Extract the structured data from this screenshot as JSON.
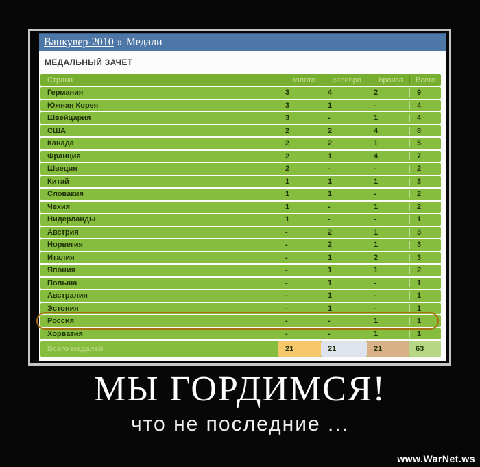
{
  "breadcrumb": {
    "link": "Ванкувер-2010",
    "separator": "»",
    "current": "Медали"
  },
  "page_title": "МЕДАЛЬНЫЙ ЗАЧЕТ",
  "table": {
    "columns": [
      "Страна",
      "золото",
      "серебро",
      "бронза",
      "Всего"
    ],
    "rows": [
      {
        "country": "Германия",
        "gold": "3",
        "silver": "4",
        "bronze": "2",
        "total": "9"
      },
      {
        "country": "Южная Корея",
        "gold": "3",
        "silver": "1",
        "bronze": "-",
        "total": "4"
      },
      {
        "country": "Швейцария",
        "gold": "3",
        "silver": "-",
        "bronze": "1",
        "total": "4"
      },
      {
        "country": "США",
        "gold": "2",
        "silver": "2",
        "bronze": "4",
        "total": "8"
      },
      {
        "country": "Канада",
        "gold": "2",
        "silver": "2",
        "bronze": "1",
        "total": "5"
      },
      {
        "country": "Франция",
        "gold": "2",
        "silver": "1",
        "bronze": "4",
        "total": "7"
      },
      {
        "country": "Швеция",
        "gold": "2",
        "silver": "-",
        "bronze": "-",
        "total": "2"
      },
      {
        "country": "Китай",
        "gold": "1",
        "silver": "1",
        "bronze": "1",
        "total": "3"
      },
      {
        "country": "Словакия",
        "gold": "1",
        "silver": "1",
        "bronze": "-",
        "total": "2"
      },
      {
        "country": "Чехия",
        "gold": "1",
        "silver": "-",
        "bronze": "1",
        "total": "2"
      },
      {
        "country": "Нидерланды",
        "gold": "1",
        "silver": "-",
        "bronze": "-",
        "total": "1"
      },
      {
        "country": "Австрия",
        "gold": "-",
        "silver": "2",
        "bronze": "1",
        "total": "3"
      },
      {
        "country": "Норвегия",
        "gold": "-",
        "silver": "2",
        "bronze": "1",
        "total": "3"
      },
      {
        "country": "Италия",
        "gold": "-",
        "silver": "1",
        "bronze": "2",
        "total": "3"
      },
      {
        "country": "Япония",
        "gold": "-",
        "silver": "1",
        "bronze": "1",
        "total": "2"
      },
      {
        "country": "Польша",
        "gold": "-",
        "silver": "1",
        "bronze": "-",
        "total": "1"
      },
      {
        "country": "Австралия",
        "gold": "-",
        "silver": "1",
        "bronze": "-",
        "total": "1"
      },
      {
        "country": "Эстония",
        "gold": "-",
        "silver": "1",
        "bronze": "-",
        "total": "1"
      },
      {
        "country": "Россия",
        "gold": "-",
        "silver": "-",
        "bronze": "1",
        "total": "1"
      },
      {
        "country": "Хорватия",
        "gold": "-",
        "silver": "-",
        "bronze": "1",
        "total": "1"
      }
    ],
    "footer": {
      "label": "Всего медалей",
      "gold": "21",
      "silver": "21",
      "bronze": "21",
      "total": "63"
    },
    "highlighted_country": "Россия"
  },
  "caption": {
    "title": "МЫ ГОРДИМСЯ!",
    "subtitle": "что не последние ..."
  },
  "watermark": "www.WarNet.ws",
  "colors": {
    "bg_black": "#070707",
    "frame_gray": "#c6c6c6",
    "blue": "#4d77a6",
    "blue_dark": "#3a5c88",
    "header_green": "#79af31",
    "header_text": "#c2e08f",
    "row_green": "#87bd3e",
    "row_text": "#203307",
    "footer_label": "#b5d67c",
    "gold_cell": "#f6c869",
    "silver_cell": "#dee3ed",
    "bronze_cell": "#d9b187",
    "total_cell": "#b6d785",
    "ellipse": "#a66f10"
  }
}
